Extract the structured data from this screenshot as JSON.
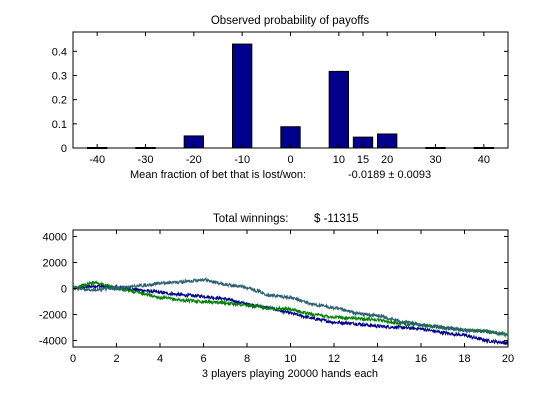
{
  "chart_data": [
    {
      "type": "bar",
      "title": "Observed probability of payoffs",
      "caption_label": "Mean fraction of bet that is lost/won:",
      "caption_value": "-0.0189 ± 0.0093",
      "xlim": [
        -45,
        45
      ],
      "ylim": [
        0,
        0.48
      ],
      "x_ticks": [
        -40,
        -30,
        -20,
        -10,
        0,
        10,
        15,
        20,
        30,
        40
      ],
      "y_ticks": [
        0,
        0.1,
        0.2,
        0.3,
        0.4
      ],
      "x": [
        -40,
        -30,
        -20,
        -10,
        0,
        10,
        15,
        20,
        30,
        40
      ],
      "values": [
        0.002,
        0.002,
        0.05,
        0.43,
        0.088,
        0.317,
        0.045,
        0.058,
        0.002,
        0.002
      ],
      "bar_width": 4,
      "bar_color": "#00008b",
      "grid": false
    },
    {
      "type": "line",
      "title": "Total winnings:",
      "title_value": "$ -11315",
      "xlabel": "3 players playing 20000 hands each",
      "xlim": [
        0,
        20
      ],
      "ylim": [
        -4500,
        4500
      ],
      "x_ticks": [
        0,
        2,
        4,
        6,
        8,
        10,
        12,
        14,
        16,
        18,
        20
      ],
      "y_ticks": [
        -4000,
        -2000,
        0,
        2000,
        4000
      ],
      "grid": false,
      "series": [
        {
          "color": "#00008b",
          "x": [
            0,
            1,
            2,
            3,
            4,
            5,
            6,
            7,
            8,
            9,
            10,
            11,
            12,
            13,
            14,
            15,
            16,
            17,
            18,
            19,
            20
          ],
          "values": [
            0,
            200,
            100,
            -100,
            -300,
            -500,
            -600,
            -800,
            -1200,
            -1500,
            -1900,
            -2300,
            -2600,
            -2700,
            -2900,
            -3000,
            -3100,
            -3400,
            -3600,
            -4000,
            -4200
          ]
        },
        {
          "color": "#008000",
          "x": [
            0,
            1,
            2,
            3,
            4,
            5,
            6,
            7,
            8,
            9,
            10,
            11,
            12,
            13,
            14,
            15,
            16,
            17,
            18,
            19,
            20
          ],
          "values": [
            0,
            500,
            0,
            -300,
            -700,
            -900,
            -1000,
            -1100,
            -1300,
            -1500,
            -1600,
            -2000,
            -2200,
            -2300,
            -2400,
            -2700,
            -2800,
            -3000,
            -3200,
            -3300,
            -3500
          ]
        },
        {
          "color": "#2a6070",
          "x": [
            0,
            1,
            2,
            3,
            4,
            5,
            6,
            7,
            8,
            9,
            10,
            11,
            12,
            13,
            14,
            15,
            16,
            17,
            18,
            19,
            20
          ],
          "values": [
            0,
            -100,
            0,
            200,
            400,
            500,
            700,
            300,
            100,
            -500,
            -700,
            -1200,
            -1500,
            -1900,
            -2100,
            -2500,
            -2800,
            -3000,
            -3200,
            -3300,
            -3600
          ]
        }
      ]
    }
  ]
}
